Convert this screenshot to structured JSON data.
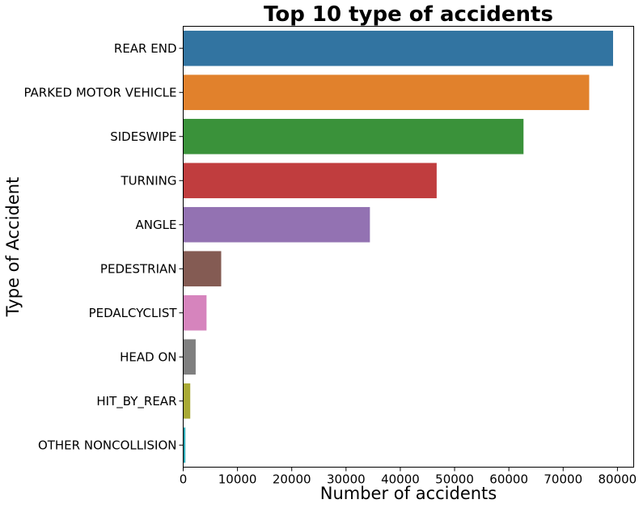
{
  "chart_data": {
    "type": "bar",
    "orientation": "horizontal",
    "title": "Top 10 type of accidents",
    "xlabel": "Number of accidents",
    "ylabel": "Type of Accident",
    "categories": [
      "REAR END",
      "PARKED MOTOR VEHICLE",
      "SIDESWIPE",
      "TURNING",
      "ANGLE",
      "PEDESTRIAN",
      "PEDALCYCLIST",
      "HEAD ON",
      "HIT_BY_REAR",
      "OTHER NONCOLLISION"
    ],
    "values": [
      79200,
      74800,
      62700,
      46700,
      34400,
      7000,
      4300,
      2300,
      1300,
      400
    ],
    "colors": [
      "#3274a1",
      "#e1812c",
      "#3a923a",
      "#c03d3e",
      "#9372b2",
      "#845b53",
      "#d684bd",
      "#7f7f7f",
      "#a9aa35",
      "#2eabb8"
    ],
    "xlim": [
      0,
      83000
    ],
    "xticks": [
      0,
      10000,
      20000,
      30000,
      40000,
      50000,
      60000,
      70000,
      80000
    ],
    "xtick_labels": [
      "0",
      "10000",
      "20000",
      "30000",
      "40000",
      "50000",
      "60000",
      "70000",
      "80000"
    ],
    "grid": false,
    "legend": "none"
  }
}
